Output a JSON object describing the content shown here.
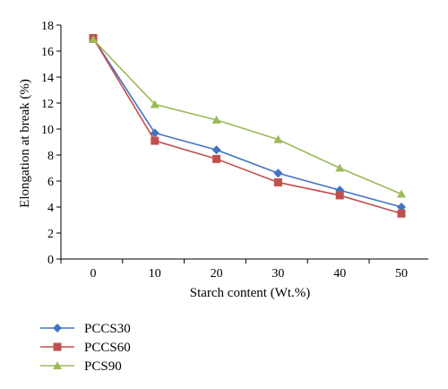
{
  "chart_data": {
    "type": "line",
    "xlabel": "Starch content (Wt.%)",
    "ylabel": "Elongation at break (%)",
    "x": [
      0,
      10,
      20,
      30,
      40,
      50
    ],
    "x_ticks": [
      "0",
      "10",
      "20",
      "30",
      "40",
      "50"
    ],
    "ylim": [
      0,
      18
    ],
    "y_ticks": [
      "0",
      "2",
      "4",
      "6",
      "8",
      "10",
      "12",
      "14",
      "16",
      "18"
    ],
    "grid": false,
    "legend_position": "bottom-left",
    "series": [
      {
        "name": "PCCS30",
        "values": [
          17.0,
          9.7,
          8.4,
          6.6,
          5.3,
          4.0
        ],
        "color": "#4472C4",
        "marker": "diamond"
      },
      {
        "name": "PCCS60",
        "values": [
          17.0,
          9.1,
          7.7,
          5.9,
          4.9,
          3.5
        ],
        "color": "#C0504D",
        "marker": "square"
      },
      {
        "name": "PCS90",
        "values": [
          16.9,
          11.9,
          10.7,
          9.2,
          7.0,
          5.0
        ],
        "color": "#9BBB59",
        "marker": "triangle"
      }
    ]
  }
}
